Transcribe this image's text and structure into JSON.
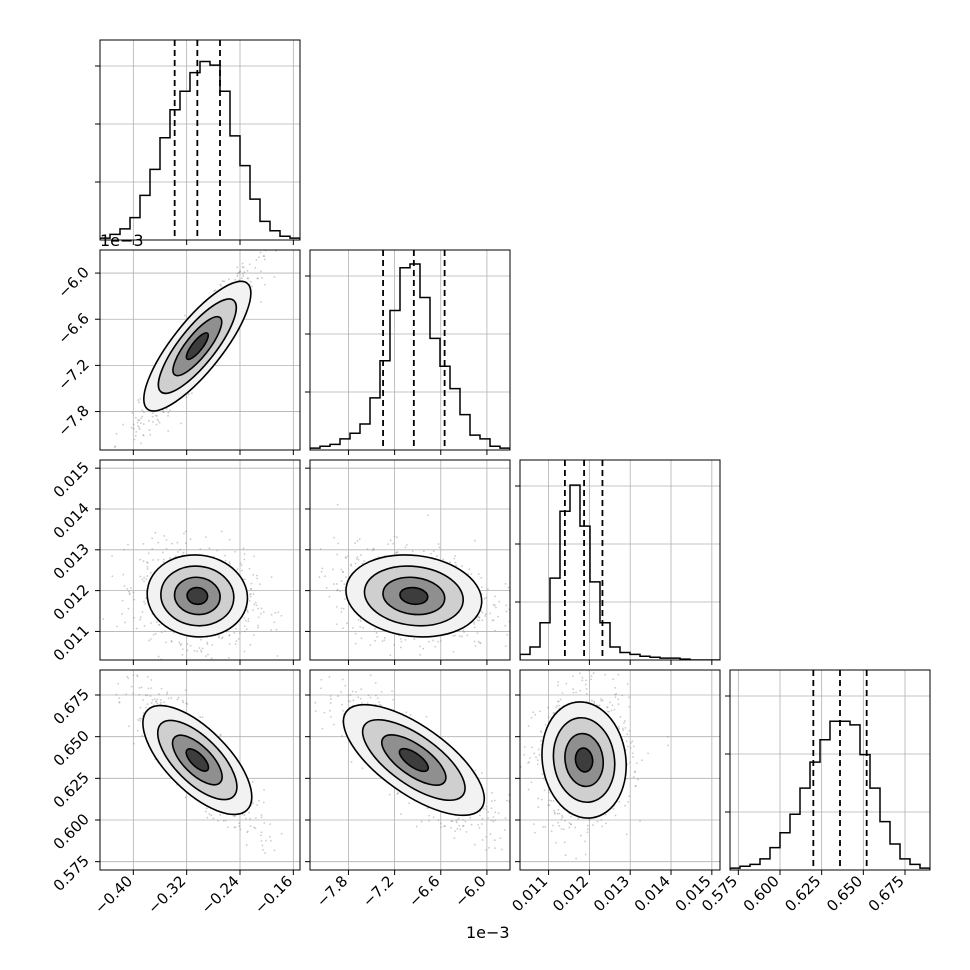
{
  "figure": {
    "type": "corner-plot",
    "colors": {
      "background": "#ffffff",
      "ink": "#000000",
      "grid": "#b0b0b0",
      "scatter": "#8c8c8c"
    },
    "panels": [
      {
        "row": 0,
        "col": 0,
        "kind": "hist"
      },
      {
        "row": 1,
        "col": 0,
        "kind": "contour"
      },
      {
        "row": 1,
        "col": 1,
        "kind": "hist"
      },
      {
        "row": 2,
        "col": 0,
        "kind": "contour"
      },
      {
        "row": 2,
        "col": 1,
        "kind": "contour"
      },
      {
        "row": 2,
        "col": 2,
        "kind": "hist"
      },
      {
        "row": 3,
        "col": 0,
        "kind": "contour"
      },
      {
        "row": 3,
        "col": 1,
        "kind": "contour"
      },
      {
        "row": 3,
        "col": 2,
        "kind": "contour"
      },
      {
        "row": 3,
        "col": 3,
        "kind": "hist"
      }
    ]
  },
  "chart_data": {
    "type": "corner",
    "parameters": [
      {
        "range": [
          -0.45,
          -0.15
        ],
        "ticks": [
          -0.4,
          -0.32,
          -0.24,
          -0.16
        ],
        "tick_labels": [
          "−0.40",
          "−0.32",
          "−0.24",
          "−0.16"
        ],
        "quantiles": [
          -0.338,
          -0.304,
          -0.27
        ]
      },
      {
        "range": [
          -8.3,
          -5.7
        ],
        "ticks": [
          -7.8,
          -7.2,
          -6.6,
          -6.0
        ],
        "tick_labels": [
          "−7.8",
          "−7.2",
          "−6.6",
          "−6.0"
        ],
        "offset_label": "1e−3",
        "quantiles": [
          -7.35,
          -6.95,
          -6.55
        ]
      },
      {
        "range": [
          0.0103,
          0.0152
        ],
        "ticks": [
          0.011,
          0.012,
          0.013,
          0.014,
          0.015
        ],
        "tick_labels": [
          "0.011",
          "0.012",
          "0.013",
          "0.014",
          "0.015"
        ],
        "quantiles": [
          0.0114,
          0.01187,
          0.01232
        ]
      },
      {
        "range": [
          0.57,
          0.69
        ],
        "ticks": [
          0.575,
          0.6,
          0.625,
          0.65,
          0.675
        ],
        "tick_labels": [
          "0.575",
          "0.600",
          "0.625",
          "0.650",
          "0.675"
        ],
        "quantiles": [
          0.62,
          0.636,
          0.652
        ]
      }
    ],
    "histograms": [
      {
        "param": 0,
        "values": [
          0.01,
          0.03,
          0.06,
          0.12,
          0.24,
          0.38,
          0.55,
          0.7,
          0.8,
          0.9,
          0.96,
          0.94,
          0.8,
          0.56,
          0.4,
          0.22,
          0.1,
          0.05,
          0.02,
          0.01
        ]
      },
      {
        "param": 1,
        "values": [
          0.01,
          0.02,
          0.03,
          0.06,
          0.09,
          0.14,
          0.28,
          0.48,
          0.75,
          0.98,
          1.0,
          0.82,
          0.6,
          0.45,
          0.33,
          0.19,
          0.08,
          0.06,
          0.02,
          0.01
        ]
      },
      {
        "param": 2,
        "values": [
          0.03,
          0.07,
          0.2,
          0.44,
          0.8,
          0.94,
          0.72,
          0.42,
          0.2,
          0.07,
          0.04,
          0.03,
          0.02,
          0.015,
          0.01,
          0.01,
          0.005,
          0.0,
          0.0,
          0.0
        ]
      },
      {
        "param": 3,
        "values": [
          0.01,
          0.02,
          0.03,
          0.06,
          0.12,
          0.2,
          0.3,
          0.44,
          0.58,
          0.7,
          0.8,
          0.8,
          0.78,
          0.62,
          0.44,
          0.26,
          0.14,
          0.06,
          0.03,
          0.01
        ]
      }
    ],
    "grid": true,
    "x_offset_label_bottom": "1e−3"
  }
}
